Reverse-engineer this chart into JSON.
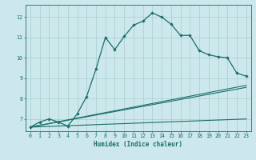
{
  "xlabel": "Humidex (Indice chaleur)",
  "bg_color": "#cde8ec",
  "grid_color": "#a8cccc",
  "line_color": "#1a6e6a",
  "xlim": [
    -0.5,
    23.5
  ],
  "ylim": [
    6.4,
    12.6
  ],
  "xticks": [
    0,
    1,
    2,
    3,
    4,
    5,
    6,
    7,
    8,
    9,
    10,
    11,
    12,
    13,
    14,
    15,
    16,
    17,
    18,
    19,
    20,
    21,
    22,
    23
  ],
  "yticks": [
    7,
    8,
    9,
    10,
    11,
    12
  ],
  "line1_x": [
    0,
    1,
    2,
    3,
    4,
    5,
    6,
    7,
    8,
    9,
    10,
    11,
    12,
    13,
    14,
    15,
    16,
    17,
    18,
    19,
    20,
    21,
    22,
    23
  ],
  "line1_y": [
    6.6,
    6.85,
    7.0,
    6.85,
    6.65,
    7.25,
    8.1,
    9.45,
    11.0,
    10.4,
    11.05,
    11.6,
    11.8,
    12.2,
    12.0,
    11.65,
    11.1,
    11.1,
    10.35,
    10.15,
    10.05,
    10.0,
    9.25,
    9.1
  ],
  "line2_x": [
    0,
    23
  ],
  "line2_y": [
    6.6,
    8.65
  ],
  "line3_x": [
    0,
    23
  ],
  "line3_y": [
    6.6,
    8.55
  ],
  "line4_x": [
    0,
    23
  ],
  "line4_y": [
    6.6,
    7.0
  ]
}
